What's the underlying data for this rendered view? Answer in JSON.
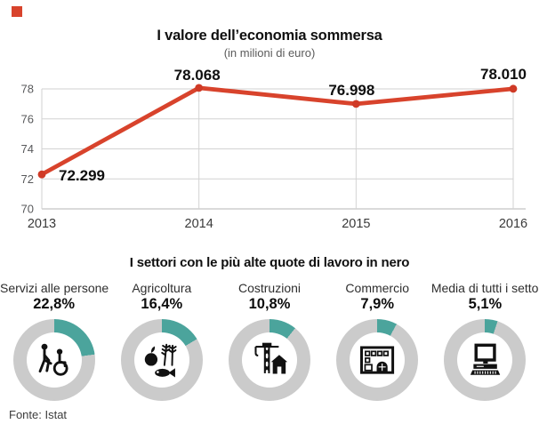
{
  "brand": {
    "mark_color": "#d8432c"
  },
  "footer": {
    "source": "Fonte: Istat"
  },
  "chart_data": [
    {
      "type": "line",
      "title": "I valore dell’economia sommersa",
      "subtitle": "(in milioni di euro)",
      "categories": [
        "2013",
        "2014",
        "2015",
        "2016"
      ],
      "values": [
        72299,
        78068,
        76998,
        78010
      ],
      "point_labels": [
        "72.299",
        "78.068",
        "76.998",
        "78.010"
      ],
      "ylim": [
        70000,
        78000
      ],
      "yticks": [
        70000,
        72000,
        74000,
        76000,
        78000
      ],
      "ytick_labels": [
        "70",
        "72",
        "74",
        "76",
        "78"
      ],
      "grid": true,
      "legend": false,
      "line_color": "#d8432c",
      "marker_color": "#cf3a26",
      "grid_color": "#d2d2d2",
      "axis_color": "#b5b5b5"
    },
    {
      "type": "donut",
      "title": "I settori con le più alte quote di lavoro in nero",
      "categories": [
        "Servizi alle persone",
        "Agricoltura",
        "Costruzioni",
        "Commercio",
        "Media di tutti i settori"
      ],
      "values": [
        22.8,
        16.4,
        10.8,
        7.9,
        5.1
      ],
      "value_labels": [
        "22,8%",
        "16,4%",
        "10,8%",
        "7,9%",
        "5,1%"
      ],
      "icons": [
        "wheelchair-icon",
        "agriculture-icon",
        "crane-house-icon",
        "storefront-icon",
        "computer-icon"
      ],
      "accent_color": "#4ba49c",
      "ring_color": "#cbcbcb",
      "max": 100
    }
  ]
}
